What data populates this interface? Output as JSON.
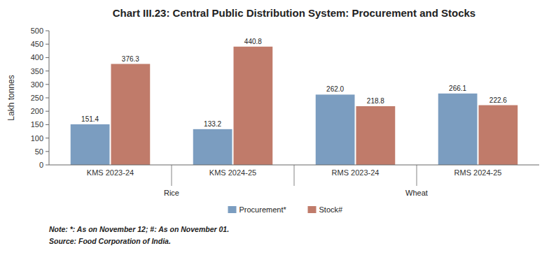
{
  "chart_data": {
    "type": "bar",
    "title": "Chart III.23: Central Public Distribution System: Procurement and Stocks",
    "y_label": "Lakh tonnes",
    "categories": [
      "KMS 2023-24",
      "KMS 2024-25",
      "RMS 2023-24",
      "RMS 2024-25"
    ],
    "groups": [
      {
        "label": "Rice",
        "categories": [
          "KMS 2023-24",
          "KMS 2024-25"
        ]
      },
      {
        "label": "Wheat",
        "categories": [
          "RMS 2023-24",
          "RMS 2024-25"
        ]
      }
    ],
    "series": [
      {
        "name": "Procurement*",
        "color": "#7B9DC0",
        "values": [
          151.4,
          133.2,
          262.0,
          266.1
        ],
        "value_labels": [
          "151.4",
          "133.2",
          "262.0",
          "266.1"
        ]
      },
      {
        "name": "Stock#",
        "color": "#C07B6A",
        "values": [
          376.3,
          440.8,
          218.8,
          222.6
        ]
      }
    ],
    "ylim": [
      0,
      500
    ],
    "yticks": [
      0,
      50,
      100,
      150,
      200,
      250,
      300,
      350,
      400,
      450,
      500
    ],
    "grid": false,
    "legend": "bottom",
    "data_labels": true,
    "notes": [
      "Note: *: As on November 12; #: As on November 01.",
      "Source: Food Corporation of India."
    ]
  }
}
